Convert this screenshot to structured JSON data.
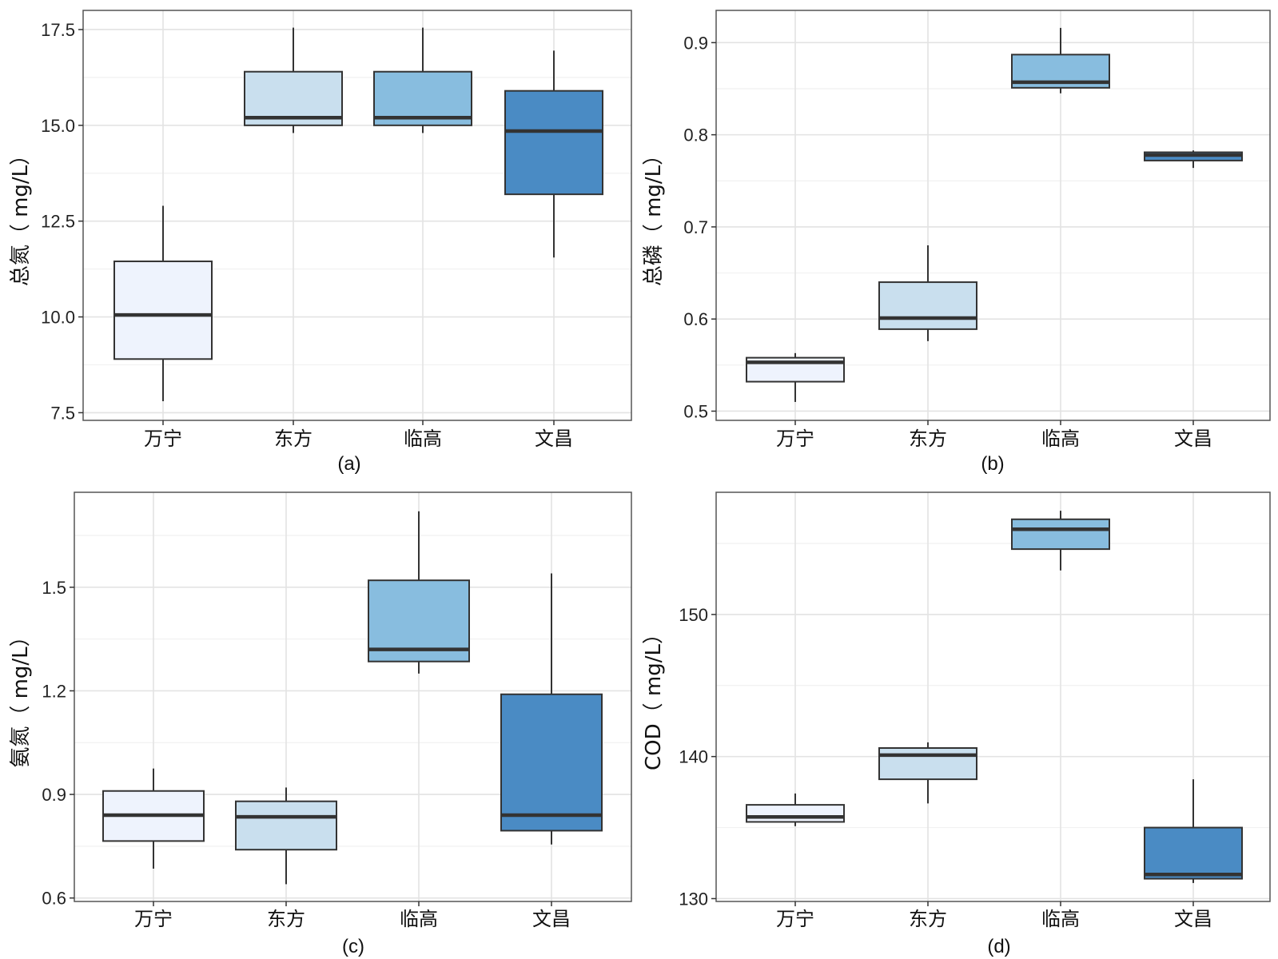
{
  "figure": {
    "panel_colors": [
      "#eef3fd",
      "#c9dfee",
      "#88bddf",
      "#4a8bc4"
    ],
    "box_stroke": "#333333",
    "grid_major": "#e3e3e3",
    "grid_minor": "#f1f1f1"
  },
  "chart_data": [
    {
      "type": "box",
      "title": "",
      "caption": "(a)",
      "ylabel": "总氮（ mg/L）",
      "categories": [
        "万宁",
        "东方",
        "临高",
        "文昌"
      ],
      "ylim": [
        7.3,
        18.0
      ],
      "yticks": [
        7.5,
        10.0,
        12.5,
        15.0,
        17.5
      ],
      "ytick_labels": [
        "7.5",
        "10.0",
        "12.5",
        "15.0",
        "17.5"
      ],
      "boxes": [
        {
          "min": 7.8,
          "q1": 8.9,
          "median": 10.05,
          "q3": 11.45,
          "max": 12.9
        },
        {
          "min": 14.8,
          "q1": 15.0,
          "median": 15.2,
          "q3": 16.4,
          "max": 17.55
        },
        {
          "min": 14.8,
          "q1": 15.0,
          "median": 15.2,
          "q3": 16.4,
          "max": 17.55
        },
        {
          "min": 11.55,
          "q1": 13.2,
          "median": 14.85,
          "q3": 15.9,
          "max": 16.95
        }
      ]
    },
    {
      "type": "box",
      "title": "",
      "caption": "(b)",
      "ylabel": "总磷（ mg/L）",
      "categories": [
        "万宁",
        "东方",
        "临高",
        "文昌"
      ],
      "ylim": [
        0.49,
        0.935
      ],
      "yticks": [
        0.5,
        0.6,
        0.7,
        0.8,
        0.9
      ],
      "ytick_labels": [
        "0.5",
        "0.6",
        "0.7",
        "0.8",
        "0.9"
      ],
      "boxes": [
        {
          "min": 0.51,
          "q1": 0.532,
          "median": 0.553,
          "q3": 0.558,
          "max": 0.563
        },
        {
          "min": 0.576,
          "q1": 0.589,
          "median": 0.601,
          "q3": 0.64,
          "max": 0.68
        },
        {
          "min": 0.845,
          "q1": 0.851,
          "median": 0.857,
          "q3": 0.887,
          "max": 0.916
        },
        {
          "min": 0.764,
          "q1": 0.772,
          "median": 0.778,
          "q3": 0.781,
          "max": 0.783
        }
      ]
    },
    {
      "type": "box",
      "title": "",
      "caption": "(c)",
      "ylabel": "氨氮（ mg/L）",
      "categories": [
        "万宁",
        "东方",
        "临高",
        "文昌"
      ],
      "ylim": [
        0.59,
        1.775
      ],
      "yticks": [
        0.6,
        0.9,
        1.2,
        1.5
      ],
      "ytick_labels": [
        "0.6",
        "0.9",
        "1.2",
        "1.5"
      ],
      "boxes": [
        {
          "min": 0.685,
          "q1": 0.765,
          "median": 0.84,
          "q3": 0.91,
          "max": 0.975
        },
        {
          "min": 0.64,
          "q1": 0.74,
          "median": 0.835,
          "q3": 0.88,
          "max": 0.92
        },
        {
          "min": 1.25,
          "q1": 1.285,
          "median": 1.32,
          "q3": 1.52,
          "max": 1.72
        },
        {
          "min": 0.755,
          "q1": 0.795,
          "median": 0.84,
          "q3": 1.19,
          "max": 1.54
        }
      ]
    },
    {
      "type": "box",
      "title": "",
      "caption": "(d)",
      "ylabel": "COD（ mg/L）",
      "categories": [
        "万宁",
        "东方",
        "临高",
        "文昌"
      ],
      "ylim": [
        129.8,
        158.6
      ],
      "yticks": [
        130,
        140,
        150
      ],
      "ytick_labels": [
        "130",
        "140",
        "150"
      ],
      "boxes": [
        {
          "min": 135.1,
          "q1": 135.4,
          "median": 135.75,
          "q3": 136.6,
          "max": 137.4
        },
        {
          "min": 136.7,
          "q1": 138.4,
          "median": 140.1,
          "q3": 140.6,
          "max": 141.0
        },
        {
          "min": 153.1,
          "q1": 154.6,
          "median": 156.0,
          "q3": 156.7,
          "max": 157.3
        },
        {
          "min": 131.1,
          "q1": 131.4,
          "median": 131.7,
          "q3": 135.0,
          "max": 138.4
        }
      ]
    }
  ]
}
